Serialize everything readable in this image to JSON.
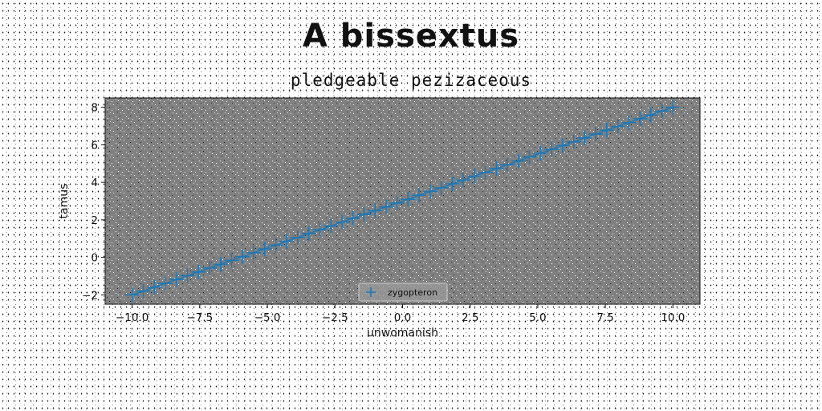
{
  "chart_data": {
    "type": "scatter",
    "title": "A bissextus",
    "subtitle": "pledgeable pezizaceous",
    "xlabel": "unwomanish",
    "ylabel": "tamus",
    "xlim": [
      -11,
      11
    ],
    "ylim": [
      -2.5,
      8.5
    ],
    "xticks": [
      -10.0,
      -7.5,
      -5.0,
      -2.5,
      0.0,
      2.5,
      5.0,
      7.5,
      10.0
    ],
    "xtick_labels": [
      "−10.0",
      "−7.5",
      "−5.0",
      "−2.5",
      "0.0",
      "2.5",
      "5.0",
      "7.5",
      "10.0"
    ],
    "yticks": [
      -2,
      0,
      2,
      4,
      6,
      8
    ],
    "ytick_labels": [
      "−2",
      "0",
      "2",
      "4",
      "6",
      "8"
    ],
    "grid": false,
    "legend_position": "bottom-center",
    "marker": "plus",
    "series": [
      {
        "name": "zygopteron",
        "color": "#1f77b4",
        "x": [
          -10.0,
          -9.59,
          -9.18,
          -8.78,
          -8.37,
          -7.96,
          -7.55,
          -7.14,
          -6.73,
          -6.33,
          -5.92,
          -5.51,
          -5.1,
          -4.69,
          -4.29,
          -3.88,
          -3.47,
          -3.06,
          -2.65,
          -2.24,
          -1.84,
          -1.43,
          -1.02,
          -0.61,
          -0.2,
          0.2,
          0.61,
          1.02,
          1.43,
          1.84,
          2.24,
          2.65,
          3.06,
          3.47,
          3.88,
          4.29,
          4.69,
          5.1,
          5.51,
          5.92,
          6.33,
          6.73,
          7.14,
          7.55,
          7.96,
          8.37,
          8.78,
          9.18,
          9.59,
          10.0
        ],
        "y": [
          -2.0,
          -1.8,
          -1.59,
          -1.39,
          -1.18,
          -0.98,
          -0.78,
          -0.57,
          -0.37,
          -0.16,
          0.04,
          0.24,
          0.45,
          0.65,
          0.86,
          1.06,
          1.27,
          1.47,
          1.67,
          1.88,
          2.08,
          2.29,
          2.49,
          2.69,
          2.9,
          3.1,
          3.31,
          3.51,
          3.71,
          3.92,
          4.12,
          4.33,
          4.53,
          4.73,
          4.94,
          5.14,
          5.35,
          5.55,
          5.76,
          5.96,
          6.16,
          6.37,
          6.57,
          6.78,
          6.98,
          7.18,
          7.39,
          7.59,
          7.8,
          8.0
        ]
      }
    ]
  }
}
